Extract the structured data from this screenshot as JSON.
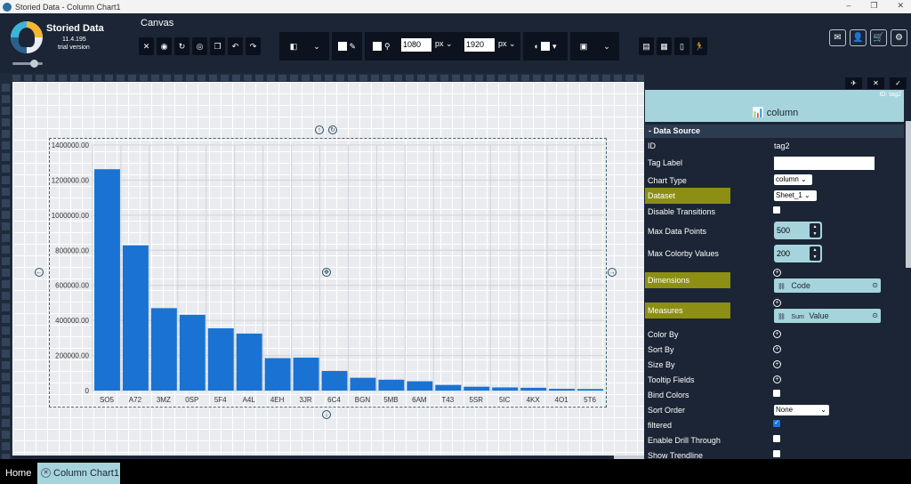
{
  "window": {
    "title": "Storied Data - Column Chart1",
    "min": "–",
    "restore": "❐",
    "close": "✕"
  },
  "brand": {
    "name": "Storied Data",
    "version": "11.4.195",
    "edition": "trial version"
  },
  "toolbar": {
    "canvas_label": "Canvas",
    "left_buttons": [
      "close-icon",
      "palette-icon",
      "refresh-icon",
      "eye-icon",
      "copy-icon",
      "undo-icon",
      "redo-icon"
    ],
    "width_value": "1080",
    "width_unit": "px",
    "height_value": "1920",
    "height_unit": "px",
    "right_buttons": [
      "save-icon",
      "table-icon",
      "document-icon",
      "run-icon"
    ],
    "corner_buttons": [
      "mail-icon",
      "user-icon",
      "cart-icon",
      "gear-icon"
    ]
  },
  "chart_data": {
    "type": "bar",
    "categories": [
      "SO5",
      "A72",
      "3MZ",
      "0SP",
      "5F4",
      "A4L",
      "4EH",
      "3JR",
      "6C4",
      "BGN",
      "5MB",
      "6AM",
      "T43",
      "5SR",
      "5IC",
      "4KX",
      "4O1",
      "5T6"
    ],
    "values": [
      1262000,
      828000,
      470000,
      432000,
      355000,
      325000,
      185000,
      188000,
      112000,
      73000,
      62000,
      53000,
      32000,
      22000,
      18000,
      16000,
      10000,
      9000
    ],
    "ylim": [
      0,
      1400000
    ],
    "yticks": [
      "0",
      "200000.00",
      "400000.00",
      "600000.00",
      "800000.00",
      "1000000.00",
      "1200000.00",
      "1400000.00"
    ],
    "bar_color": "#1a73d2",
    "grid": true
  },
  "panel": {
    "id_badge": "ID: tag2",
    "chart_type_label": "column",
    "section": "- Data Source",
    "id_label": "ID",
    "id_value": "tag2",
    "tag_label": "Tag Label",
    "tag_value": "",
    "chart_type": "Chart Type",
    "chart_type_value": "column",
    "dataset": "Dataset",
    "dataset_value": "Sheet_1",
    "disable_transitions": "Disable Transitions",
    "max_points": "Max Data Points",
    "max_points_value": "500",
    "max_colorby": "Max Colorby Values",
    "max_colorby_value": "200",
    "dimensions": "Dimensions",
    "dimension_value": "Code",
    "measures": "Measures",
    "measure_agg": "Sum",
    "measure_value": "Value",
    "color_by": "Color By",
    "sort_by": "Sort By",
    "size_by": "Size By",
    "tooltip_fields": "Tooltip Fields",
    "bind_colors": "Bind Colors",
    "sort_order": "Sort Order",
    "sort_order_value": "None",
    "filtered": "filtered",
    "drill": "Enable Drill Through",
    "trendline": "Show Trendline"
  },
  "bottom": {
    "home": "Home",
    "tab": "Column Chart1"
  }
}
